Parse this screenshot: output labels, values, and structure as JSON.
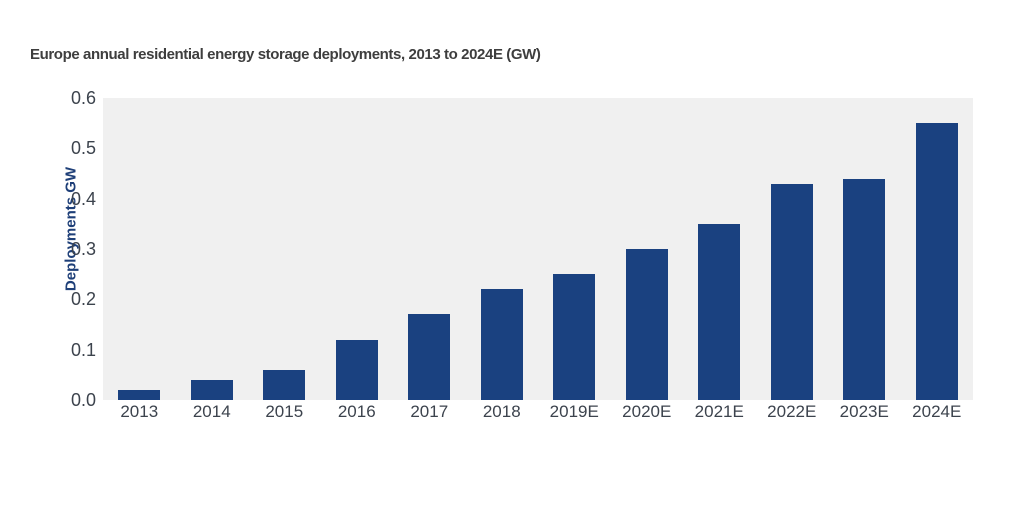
{
  "chart_data": {
    "type": "bar",
    "title": "Europe annual residential energy storage deployments, 2013 to 2024E (GW)",
    "ylabel": "Deployments GW",
    "xlabel": "",
    "unit": "GW",
    "categories": [
      "2013",
      "2014",
      "2015",
      "2016",
      "2017",
      "2018",
      "2019E",
      "2020E",
      "2021E",
      "2022E",
      "2023E",
      "2024E"
    ],
    "values": [
      0.02,
      0.04,
      0.06,
      0.12,
      0.17,
      0.22,
      0.25,
      0.3,
      0.35,
      0.43,
      0.44,
      0.55
    ],
    "ylim": [
      0,
      0.6
    ],
    "yticks": [
      0,
      0.1,
      0.2,
      0.3,
      0.4,
      0.5,
      0.6
    ],
    "ytick_decimals": 1,
    "grid": false,
    "legend": false,
    "colors": {
      "bar": "#1A4180",
      "plot_background": "#F0F0F0",
      "page_background": "#FFFFFF",
      "title_text": "#3E3E3E",
      "tick_text": "#3C434D",
      "axis_label_text": "#1E3F78"
    }
  }
}
